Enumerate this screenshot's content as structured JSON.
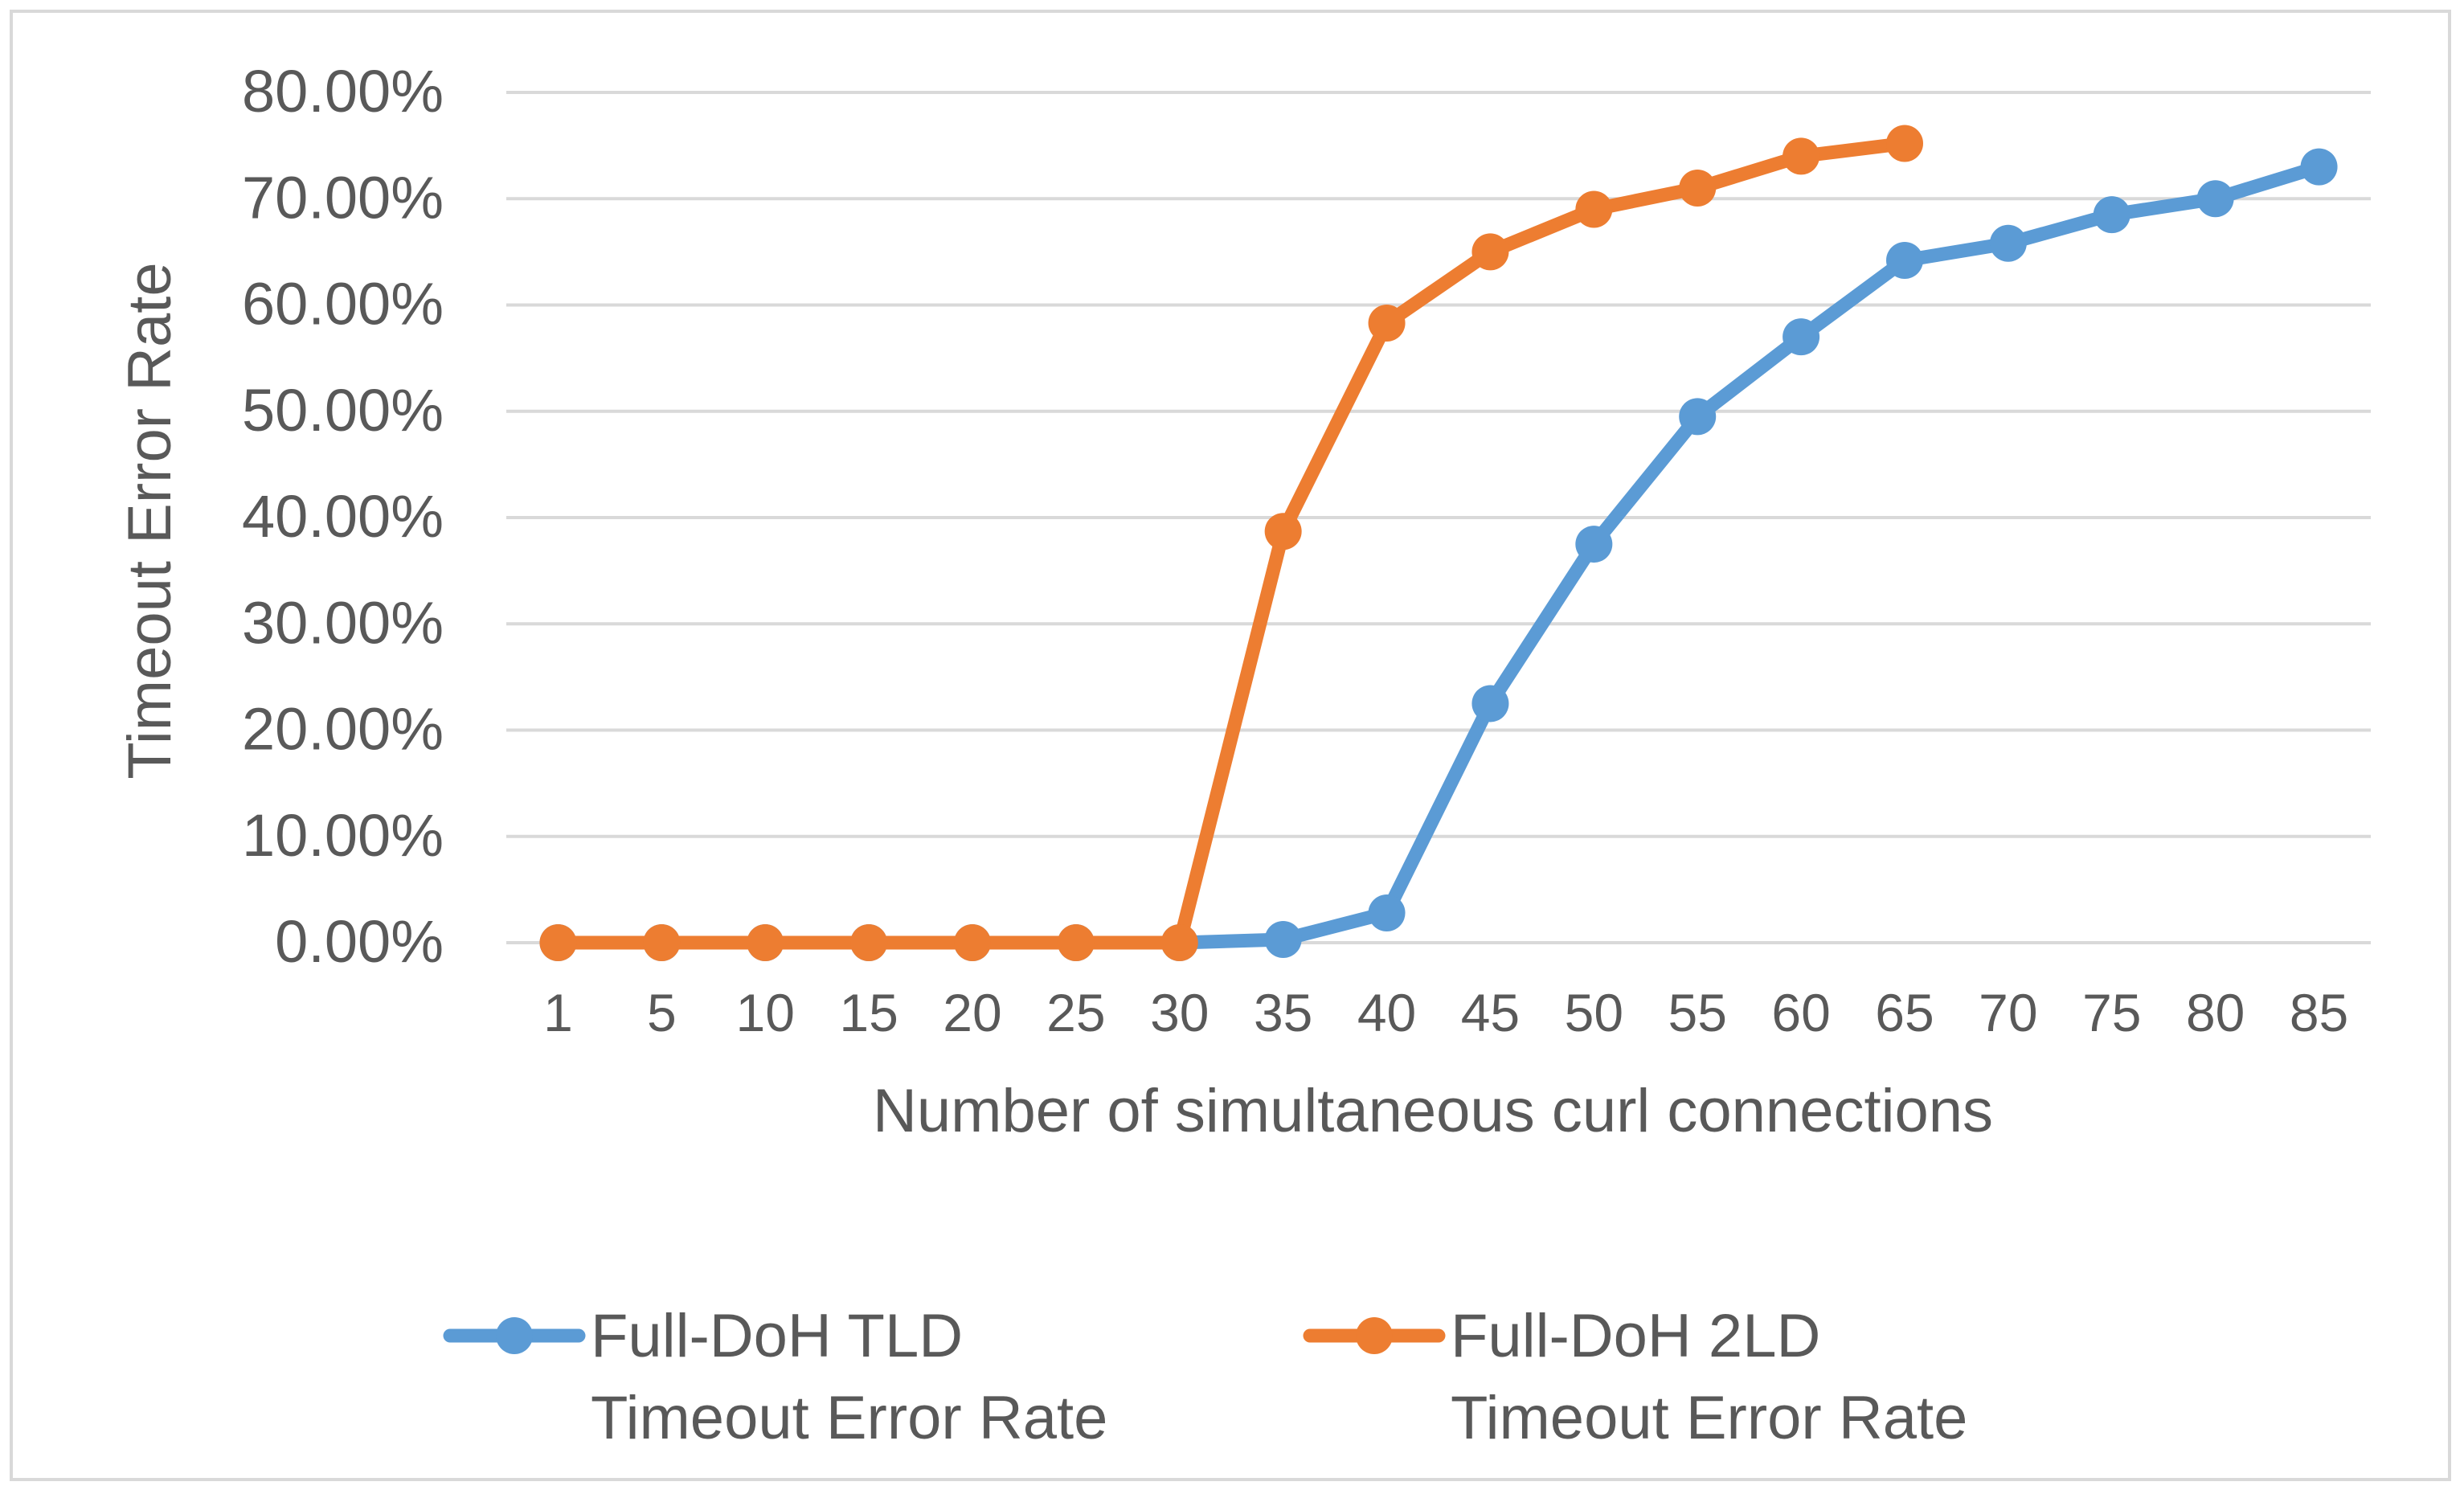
{
  "chart_data": {
    "type": "line",
    "title": "",
    "xlabel": "Number of simultaneous curl connections",
    "ylabel": "Timeout Error Rate",
    "categories": [
      "1",
      "5",
      "10",
      "15",
      "20",
      "25",
      "30",
      "35",
      "40",
      "45",
      "50",
      "55",
      "60",
      "65",
      "70",
      "75",
      "80",
      "85"
    ],
    "ylim": [
      0,
      80
    ],
    "yticks": [
      "0.00%",
      "10.00%",
      "20.00%",
      "30.00%",
      "40.00%",
      "50.00%",
      "60.00%",
      "70.00%",
      "80.00%"
    ],
    "grid": "horizontal",
    "legend_position": "bottom",
    "series": [
      {
        "name_line1": "Full-DoH TLD",
        "name_line2": "Timeout Error Rate",
        "color": "#5b9bd5",
        "values": [
          0,
          0,
          0,
          0,
          0,
          0,
          0,
          0.3,
          2.8,
          22.5,
          37.5,
          49.5,
          57.0,
          64.2,
          65.8,
          68.5,
          70.0,
          73.0
        ]
      },
      {
        "name_line1": "Full-DoH 2LD",
        "name_line2": "Timeout Error Rate",
        "color": "#ed7d31",
        "values": [
          0,
          0,
          0,
          0,
          0,
          0,
          0,
          38.7,
          58.3,
          65.0,
          69.0,
          71.0,
          74.0,
          75.2,
          null,
          null,
          null,
          null
        ]
      }
    ]
  }
}
